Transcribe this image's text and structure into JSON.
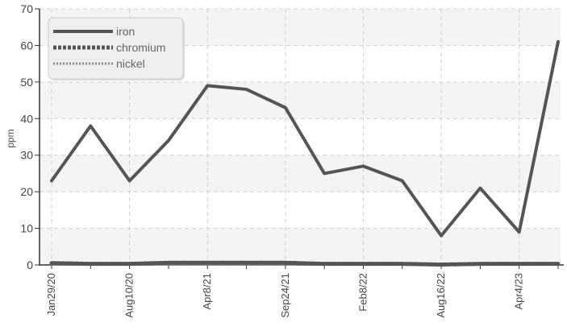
{
  "chart_data": {
    "type": "line",
    "title": "",
    "xlabel": "",
    "ylabel": "ppm",
    "ylim": [
      0,
      70
    ],
    "yticks": [
      0,
      10,
      20,
      30,
      40,
      50,
      60,
      70
    ],
    "grid": true,
    "legend_position": "top-left",
    "x": [
      "Jan29/20",
      "",
      "Aug10/20",
      "",
      "Apr8/21",
      "",
      "Sep24/21",
      "",
      "Feb8/22",
      "",
      "Aug16/22",
      "",
      "Apr4/23",
      ""
    ],
    "series": [
      {
        "name": "iron",
        "color": "#555555",
        "style": "solid",
        "values": [
          23,
          38,
          23,
          34,
          49,
          48,
          43,
          25,
          27,
          23,
          8,
          21,
          9,
          61
        ]
      },
      {
        "name": "chromium",
        "color": "#555555",
        "style": "dashed",
        "values": [
          0.5,
          0.3,
          0.3,
          0.6,
          0.6,
          0.6,
          0.6,
          0.3,
          0.3,
          0.3,
          0.1,
          0.3,
          0.3,
          0.3
        ]
      },
      {
        "name": "nickel",
        "color": "#888888",
        "style": "dotted",
        "values": [
          0.2,
          0.1,
          0.1,
          0.2,
          0.2,
          0.2,
          0.2,
          0.1,
          0.1,
          0.1,
          0.0,
          0.1,
          0.1,
          0.1
        ]
      }
    ]
  }
}
